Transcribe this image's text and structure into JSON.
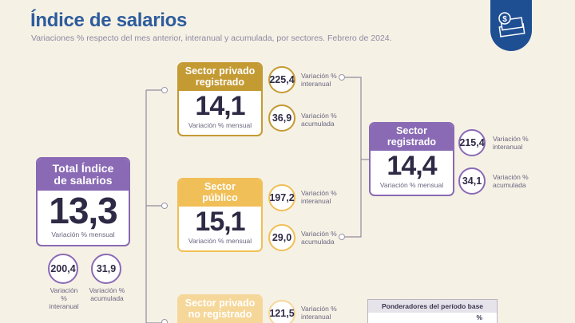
{
  "header": {
    "title": "Índice de salarios",
    "subtitle": "Variaciones % respecto del mes anterior, interanual y acumulada, por sectores. Febrero de 2024."
  },
  "colors": {
    "purple": "#8a6ab5",
    "gold": "#c49a33",
    "yellow": "#f0bf57",
    "paleYellow": "#f6d79a",
    "blue": "#1f4f93"
  },
  "chart_data": {
    "type": "table",
    "period": "Febrero de 2024",
    "sectors": [
      {
        "name": "Total Índice de salarios",
        "mensual": "13,3",
        "interanual": "200,4",
        "acumulada": "31,9"
      },
      {
        "name": "Sector privado registrado",
        "mensual": "14,1",
        "interanual": "225,4",
        "acumulada": "36,9"
      },
      {
        "name": "Sector público",
        "mensual": "15,1",
        "interanual": "197,2",
        "acumulada": "29,0"
      },
      {
        "name": "Sector registrado",
        "mensual": "14,4",
        "interanual": "215,4",
        "acumulada": "34,1"
      },
      {
        "name": "Sector privado no registrado",
        "interanual": "121,5"
      }
    ]
  },
  "labels": {
    "mensual": "Variación % mensual",
    "interanual_1": "Variación %",
    "interanual_2": "interanual",
    "acumulada_1": "Variación %",
    "acumulada_2": "acumulada"
  },
  "cards": {
    "total_line1": "Total Índice",
    "total_line2": "de salarios",
    "priv_line1": "Sector privado",
    "priv_line2": "registrado",
    "pub_line1": "Sector",
    "pub_line2": "público",
    "reg_line1": "Sector",
    "reg_line2": "registrado",
    "noreg_line1": "Sector privado",
    "noreg_line2": "no registrado"
  },
  "table": {
    "title": "Ponderadores del período base",
    "col": "%"
  }
}
